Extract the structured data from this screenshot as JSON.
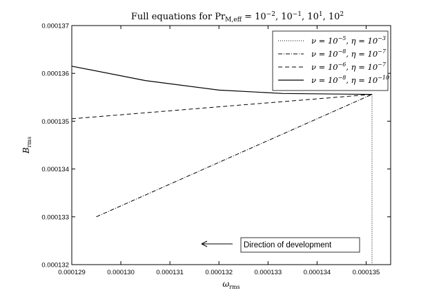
{
  "chart_data": {
    "type": "line",
    "title": "Full equations for Pr_M,eff = 10^-2, 10^-1, 10^1, 10^2",
    "title_parts": {
      "prefix": "Full equations for Pr",
      "sub": "M,eff",
      "suffix": " = 10",
      "exp1": "−2",
      "sep1": ", 10",
      "exp2": "−1",
      "sep2": ", 10",
      "exp3": "1",
      "sep3": ", 10",
      "exp4": "2"
    },
    "xlabel": {
      "main": "ω",
      "sub": "rms"
    },
    "ylabel": {
      "main": "B",
      "sub": "rms"
    },
    "xlim": [
      0.000129,
      0.0001355
    ],
    "ylim": [
      0.000132,
      0.000137
    ],
    "x_ticks": [
      "0.000129",
      "0.000130",
      "0.000131",
      "0.000132",
      "0.000133",
      "0.000134",
      "0.000135"
    ],
    "y_ticks": [
      "0.000132",
      "0.000133",
      "0.000134",
      "0.000135",
      "0.000136",
      "0.000137"
    ],
    "x_tick_values": [
      0.000129,
      0.00013,
      0.000131,
      0.000132,
      0.000133,
      0.000134,
      0.000135
    ],
    "y_tick_values": [
      0.000132,
      0.000133,
      0.000134,
      0.000135,
      0.000136,
      0.000137
    ],
    "grid": false,
    "legend_position": "top-right",
    "series": [
      {
        "name": "ν = 10^-5, η = 10^-3",
        "label": {
          "a": "ν = 10",
          "ea": "−5",
          "b": ", η = 10",
          "eb": "−3"
        },
        "style": "dotted",
        "x": [
          0.00013512,
          0.00013512
        ],
        "y": [
          0.00013556,
          0.000132
        ]
      },
      {
        "name": "ν = 10^-8, η = 10^-7",
        "label": {
          "a": "ν = 10",
          "ea": "−8",
          "b": ", η = 10",
          "eb": "−7"
        },
        "style": "dashdot",
        "x": [
          0.0001295,
          0.00013512
        ],
        "y": [
          0.000133,
          0.00013556
        ]
      },
      {
        "name": "ν = 10^-6, η = 10^-7",
        "label": {
          "a": "ν = 10",
          "ea": "−6",
          "b": ", η = 10",
          "eb": "−7"
        },
        "style": "dashed",
        "x": [
          0.000129,
          0.00013512
        ],
        "y": [
          0.00013505,
          0.00013556
        ]
      },
      {
        "name": "ν = 10^-8, η = 10^-10",
        "label": {
          "a": "ν = 10",
          "ea": "−8",
          "b": ", η = 10",
          "eb": "−10"
        },
        "style": "solid",
        "x": [
          0.000129,
          0.0001305,
          0.000132,
          0.0001333,
          0.00013512
        ],
        "y": [
          0.00013615,
          0.00013585,
          0.00013565,
          0.00013558,
          0.00013556
        ]
      }
    ],
    "annotation": {
      "text": "Direction of development",
      "arrow": "left"
    }
  }
}
